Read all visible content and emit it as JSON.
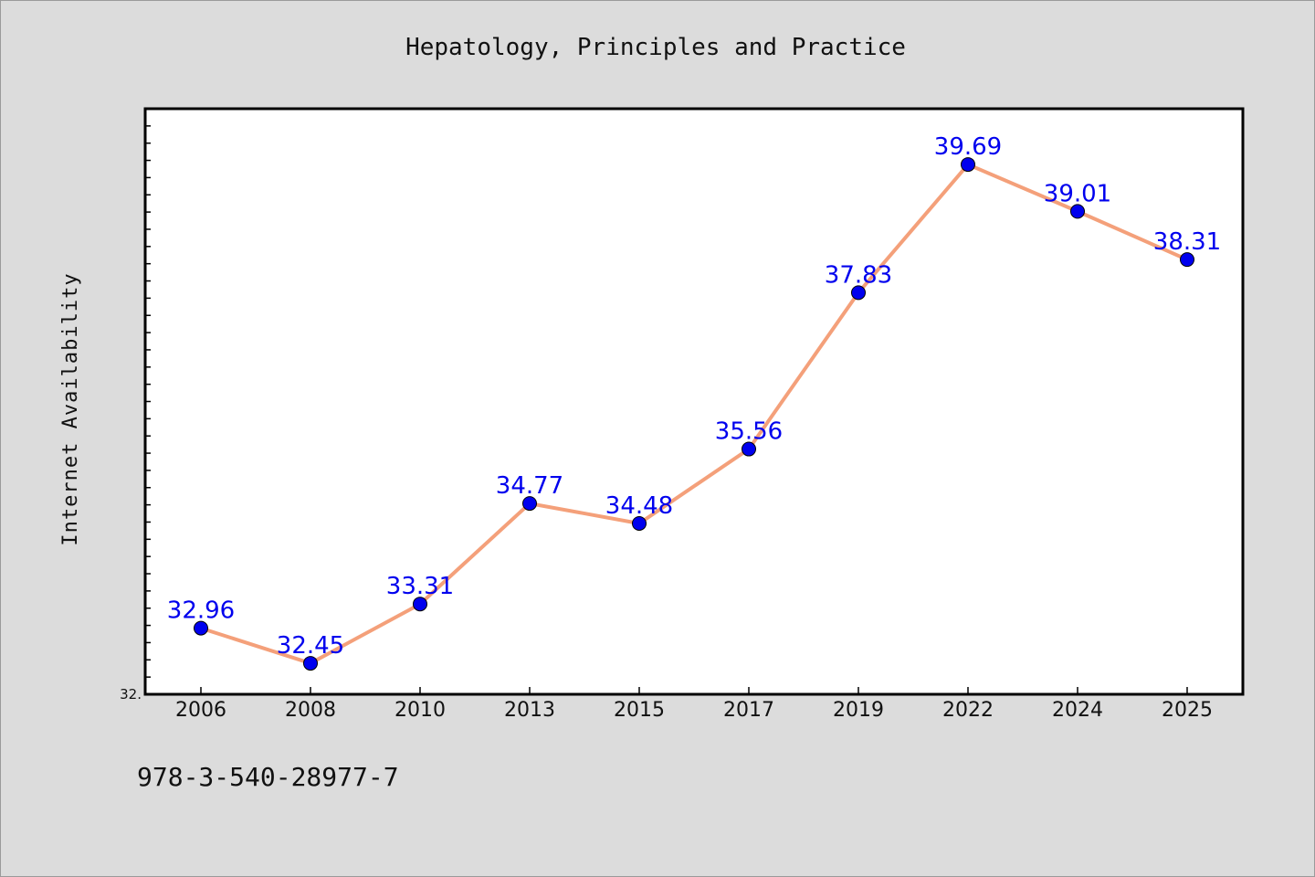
{
  "footer": {
    "code": "978-3-540-28977-7"
  },
  "colors": {
    "line": "#f4a07a",
    "marker": "#0000ee",
    "data_label": "#0000ee",
    "plot_background": "#ffffff",
    "page_background": "#dcdcdc"
  },
  "chart_data": {
    "type": "line",
    "title": "Hepatology, Principles and Practice",
    "xlabel": "",
    "ylabel": "Internet Availability",
    "categories": [
      "2006",
      "2008",
      "2010",
      "2013",
      "2015",
      "2017",
      "2019",
      "2022",
      "2024",
      "2025"
    ],
    "series": [
      {
        "values": [
          32.96,
          32.45,
          33.31,
          34.77,
          34.48,
          35.56,
          37.83,
          39.69,
          39.01,
          38.31
        ]
      }
    ],
    "data_labels": [
      "32.96",
      "32.45",
      "33.31",
      "34.77",
      "34.48",
      "35.56",
      "37.83",
      "39.69",
      "39.01",
      "38.31"
    ],
    "ytick_labels": [
      "32."
    ],
    "ylim": [
      32.0,
      40.5
    ],
    "grid": false,
    "legend": "none"
  }
}
